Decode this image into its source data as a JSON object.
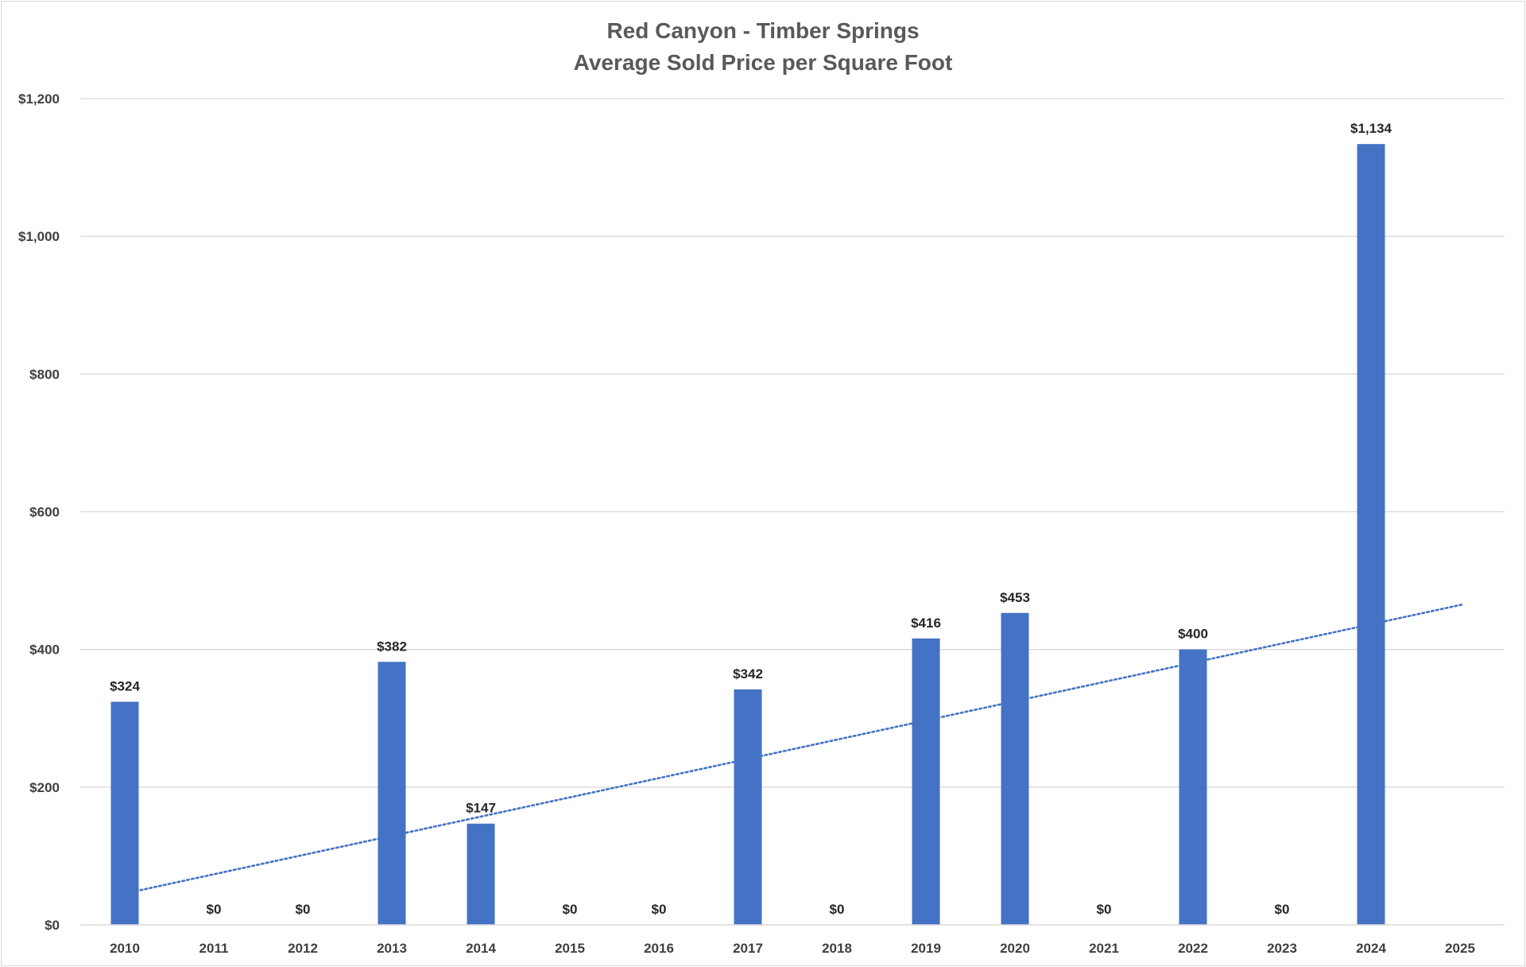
{
  "chart_data": {
    "type": "bar",
    "title": "Red Canyon - Timber Springs",
    "subtitle": "Average Sold Price per Square Foot",
    "xlabel": "",
    "ylabel": "",
    "categories": [
      "2010",
      "2011",
      "2012",
      "2013",
      "2014",
      "2015",
      "2016",
      "2017",
      "2018",
      "2019",
      "2020",
      "2021",
      "2022",
      "2023",
      "2024",
      "2025"
    ],
    "series": [
      {
        "values": [
          324,
          0,
          0,
          382,
          147,
          0,
          0,
          342,
          0,
          416,
          453,
          0,
          400,
          0,
          1134,
          null
        ],
        "data_labels": [
          "$324",
          "$0",
          "$0",
          "$382",
          "$147",
          "$0",
          "$0",
          "$342",
          "$0",
          "$416",
          "$453",
          "$0",
          "$400",
          "$0",
          "$1,134",
          ""
        ],
        "color": "#4472c4"
      }
    ],
    "trendline": {
      "type": "linear",
      "style": "dotted",
      "color": "#4472c4",
      "start": {
        "x": "2010",
        "y": 46
      },
      "end": {
        "x": "2025",
        "y": 465
      }
    },
    "ylim": [
      0,
      1200
    ],
    "y_ticks": [
      {
        "value": 0,
        "label": "$0"
      },
      {
        "value": 200,
        "label": "$200"
      },
      {
        "value": 400,
        "label": "$400"
      },
      {
        "value": 600,
        "label": "$600"
      },
      {
        "value": 800,
        "label": "$800"
      },
      {
        "value": 1000,
        "label": "$1,000"
      },
      {
        "value": 1200,
        "label": "$1,200"
      }
    ],
    "grid": true,
    "legend": "none"
  }
}
